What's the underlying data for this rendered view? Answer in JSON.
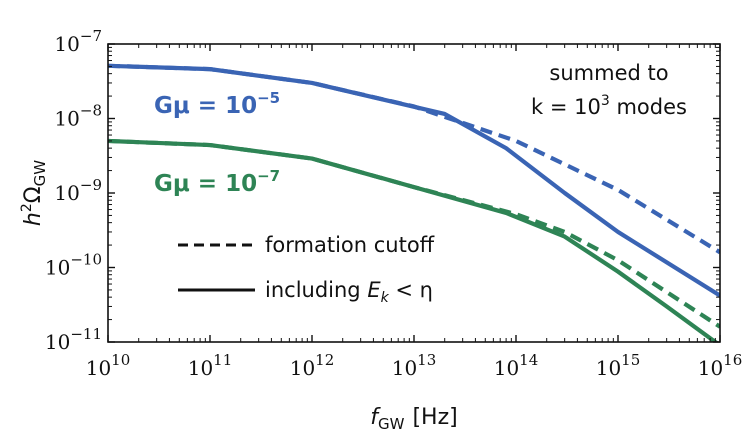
{
  "chart_data": {
    "type": "line",
    "xscale": "log",
    "yscale": "log",
    "xlim": [
      10000000000.0,
      1e+16
    ],
    "ylim": [
      1e-11,
      1e-07
    ],
    "xlabel": {
      "main": "f",
      "sub": "GW",
      "unit": "[Hz]"
    },
    "ylabel": {
      "main": "h",
      "sup": "2",
      "greek": "Ω",
      "sub": "GW"
    },
    "xticks": [
      {
        "value": 10000000000.0,
        "base": "10",
        "exp": "10"
      },
      {
        "value": 100000000000.0,
        "base": "10",
        "exp": "11"
      },
      {
        "value": 1000000000000.0,
        "base": "10",
        "exp": "12"
      },
      {
        "value": 10000000000000.0,
        "base": "10",
        "exp": "13"
      },
      {
        "value": 100000000000000.0,
        "base": "10",
        "exp": "14"
      },
      {
        "value": 1000000000000000.0,
        "base": "10",
        "exp": "15"
      },
      {
        "value": 1e+16,
        "base": "10",
        "exp": "16"
      }
    ],
    "yticks": [
      {
        "value": 1e-07,
        "base": "10",
        "exp": "−7"
      },
      {
        "value": 1e-08,
        "base": "10",
        "exp": "−8"
      },
      {
        "value": 1e-09,
        "base": "10",
        "exp": "−9"
      },
      {
        "value": 1e-10,
        "base": "10",
        "exp": "−10"
      },
      {
        "value": 1e-11,
        "base": "10",
        "exp": "−11"
      }
    ],
    "annotation": {
      "line1": "summed to",
      "line2_prefix": "k = 10",
      "line2_sup": "3",
      "line2_suffix": " modes"
    },
    "series_labels": [
      {
        "prefix": "Gμ = 10",
        "sup": "−5",
        "color": "#3a64b4"
      },
      {
        "prefix": "Gμ = 10",
        "sup": "−7",
        "color": "#2e8455"
      }
    ],
    "legend": [
      {
        "label": "formation cutoff",
        "style": "dashed"
      },
      {
        "label_prefix": "including ",
        "label_math": "E",
        "label_sub": "k",
        "label_suffix": " < η",
        "style": "solid"
      }
    ],
    "series": [
      {
        "group": "Gμ = 10^-5",
        "style": "solid",
        "color": "#3a64b4",
        "points": [
          [
            10000000000.0,
            5.1e-08
          ],
          [
            100000000000.0,
            4.6e-08
          ],
          [
            1000000000000.0,
            3e-08
          ],
          [
            20000000000000.0,
            1.15e-08
          ],
          [
            80000000000000.0,
            4e-09
          ],
          [
            300000000000000.0,
            1e-09
          ],
          [
            1000000000000000.0,
            3e-10
          ],
          [
            1e+16,
            4.2e-11
          ]
        ]
      },
      {
        "group": "Gμ = 10^-5",
        "style": "dashed",
        "color": "#3a64b4",
        "points": [
          [
            10000000000.0,
            5.1e-08
          ],
          [
            100000000000.0,
            4.6e-08
          ],
          [
            1000000000000.0,
            3e-08
          ],
          [
            10000000000000.0,
            1.45e-08
          ],
          [
            100000000000000.0,
            5e-09
          ],
          [
            1000000000000000.0,
            1.1e-09
          ],
          [
            1e+16,
            1.6e-10
          ]
        ]
      },
      {
        "group": "Gμ = 10^-7",
        "style": "solid",
        "color": "#2e8455",
        "points": [
          [
            10000000000.0,
            5e-09
          ],
          [
            100000000000.0,
            4.4e-09
          ],
          [
            1000000000000.0,
            2.9e-09
          ],
          [
            10000000000000.0,
            1.2e-09
          ],
          [
            80000000000000.0,
            5.4e-10
          ],
          [
            300000000000000.0,
            2.6e-10
          ],
          [
            1000000000000000.0,
            8.8e-11
          ],
          [
            3000000000000000.0,
            3e-11
          ],
          [
            1e+16,
            9e-12
          ]
        ]
      },
      {
        "group": "Gμ = 10^-7",
        "style": "dashed",
        "color": "#2e8455",
        "points": [
          [
            10000000000.0,
            5e-09
          ],
          [
            100000000000.0,
            4.4e-09
          ],
          [
            1000000000000.0,
            2.9e-09
          ],
          [
            10000000000000.0,
            1.2e-09
          ],
          [
            100000000000000.0,
            5.2e-10
          ],
          [
            300000000000000.0,
            3e-10
          ],
          [
            1000000000000000.0,
            1.25e-10
          ],
          [
            1e+16,
            1.6e-11
          ]
        ]
      }
    ]
  }
}
